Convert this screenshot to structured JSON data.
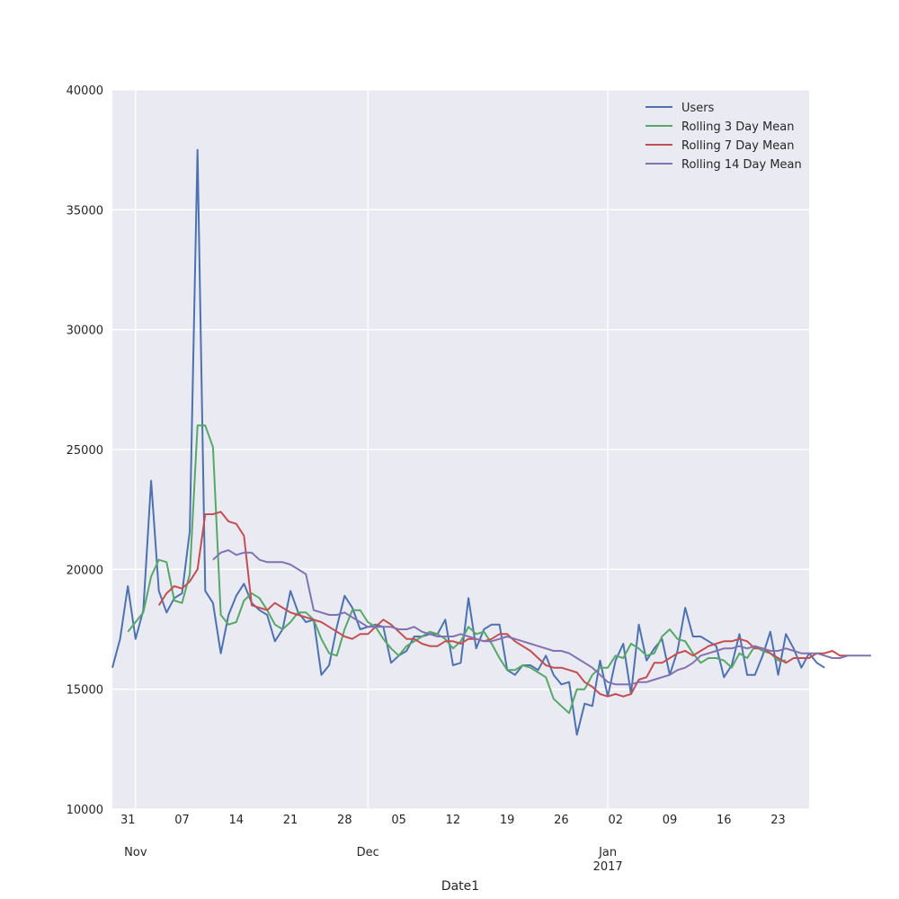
{
  "chart_data": {
    "type": "line",
    "xlabel": "Date1",
    "ylabel": "",
    "x_range": [
      "2016-10-29",
      "2017-01-27"
    ],
    "ylim": [
      10000,
      40000
    ],
    "y_ticks": [
      10000,
      15000,
      20000,
      25000,
      30000,
      35000,
      40000
    ],
    "y_tick_labels": [
      "10000",
      "15000",
      "20000",
      "25000",
      "30000",
      "35000",
      "40000"
    ],
    "x_ticks": [
      {
        "date": "2016-10-31",
        "label": "31"
      },
      {
        "date": "2016-11-07",
        "label": "07"
      },
      {
        "date": "2016-11-14",
        "label": "14"
      },
      {
        "date": "2016-11-21",
        "label": "21"
      },
      {
        "date": "2016-11-28",
        "label": "28"
      },
      {
        "date": "2016-12-05",
        "label": "05"
      },
      {
        "date": "2016-12-12",
        "label": "12"
      },
      {
        "date": "2016-12-19",
        "label": "19"
      },
      {
        "date": "2016-12-26",
        "label": "26"
      },
      {
        "date": "2017-01-02",
        "label": "02"
      },
      {
        "date": "2017-01-09",
        "label": "09"
      },
      {
        "date": "2017-01-16",
        "label": "16"
      },
      {
        "date": "2017-01-23",
        "label": "23"
      }
    ],
    "x_major_ticks": [
      {
        "date": "2016-11-01",
        "label": "Nov"
      },
      {
        "date": "2016-12-01",
        "label": "Dec"
      },
      {
        "date": "2017-01-01",
        "label": "Jan",
        "sublabel": "2017"
      }
    ],
    "grid": true,
    "legend_position": "top-right",
    "background": "#eaeaf2",
    "series": [
      {
        "name": "Users",
        "color": "#4c72b0",
        "start_date": "2016-10-29",
        "values": [
          15900,
          17100,
          19300,
          17100,
          18300,
          23700,
          19100,
          18200,
          18800,
          19000,
          21600,
          37500,
          19100,
          18600,
          16500,
          18100,
          18900,
          19400,
          18600,
          18300,
          18100,
          17000,
          17500,
          19100,
          18200,
          17800,
          17900,
          15600,
          16000,
          17600,
          18900,
          18400,
          17500,
          17600,
          17700,
          17600,
          16100,
          16400,
          16600,
          17200,
          17200,
          17300,
          17300,
          17900,
          16000,
          16100,
          18800,
          16700,
          17500,
          17700,
          17700,
          15800,
          15600,
          16000,
          16000,
          15800,
          16400,
          15600,
          15200,
          15300,
          13100,
          14400,
          14300,
          16200,
          14700,
          16200,
          16900,
          14800,
          17700,
          16200,
          16700,
          17100,
          15600,
          16600,
          18400,
          17200,
          17200,
          17000,
          16800,
          15500,
          16000,
          17300,
          15600,
          15600,
          16400,
          17400,
          15600,
          17300,
          16700,
          15900,
          16500,
          16100,
          15900
        ]
      },
      {
        "name": "Rolling 3 Day Mean",
        "color": "#55a868",
        "start_date": "2016-10-31",
        "values": [
          17400,
          17800,
          18200,
          19700,
          20400,
          20300,
          18700,
          18600,
          19800,
          26000,
          26000,
          25100,
          18100,
          17700,
          17800,
          18700,
          19000,
          18800,
          18300,
          17700,
          17500,
          17800,
          18200,
          18200,
          17900,
          17100,
          16500,
          16400,
          17500,
          18300,
          18300,
          17800,
          17600,
          17100,
          16700,
          16400,
          16800,
          17000,
          17200,
          17400,
          17300,
          17100,
          16700,
          17000,
          17600,
          17300,
          17400,
          16900,
          16300,
          15800,
          15800,
          16000,
          15900,
          15700,
          15500,
          14600,
          14300,
          14000,
          15000,
          15000,
          15600,
          15900,
          15900,
          16400,
          16300,
          16900,
          16700,
          16400,
          16500,
          17200,
          17500,
          17100,
          17000,
          16500,
          16100,
          16300,
          16300,
          16200,
          15900,
          16500,
          16300,
          16800,
          16600,
          16500,
          16200,
          16200
        ]
      },
      {
        "name": "Rolling 7 Day Mean",
        "color": "#c44e52",
        "start_date": "2016-11-04",
        "values": [
          18500,
          19000,
          19300,
          19200,
          19500,
          20000,
          22300,
          22300,
          22400,
          22000,
          21900,
          21400,
          18500,
          18400,
          18300,
          18600,
          18400,
          18200,
          18100,
          18000,
          17900,
          17800,
          17600,
          17400,
          17200,
          17100,
          17300,
          17300,
          17600,
          17900,
          17700,
          17400,
          17100,
          17100,
          16900,
          16800,
          16800,
          17000,
          17000,
          16900,
          17100,
          17100,
          17000,
          17100,
          17300,
          17300,
          17000,
          16800,
          16600,
          16300,
          16000,
          15900,
          15900,
          15800,
          15700,
          15300,
          15100,
          14800,
          14700,
          14800,
          14700,
          14800,
          15400,
          15500,
          16100,
          16100,
          16300,
          16500,
          16600,
          16400,
          16600,
          16800,
          16900,
          17000,
          17000,
          17100,
          17000,
          16700,
          16700,
          16500,
          16300,
          16100,
          16300,
          16300,
          16300,
          16500,
          16500,
          16600,
          16400,
          16400
        ]
      },
      {
        "name": "Rolling 14 Day Mean",
        "color": "#8172b2",
        "start_date": "2016-11-11",
        "values": [
          20400,
          20700,
          20800,
          20600,
          20700,
          20700,
          20400,
          20300,
          20300,
          20300,
          20200,
          20000,
          19800,
          18300,
          18200,
          18100,
          18100,
          18200,
          18000,
          17800,
          17600,
          17600,
          17600,
          17600,
          17500,
          17500,
          17600,
          17400,
          17300,
          17200,
          17200,
          17200,
          17300,
          17200,
          17100,
          17000,
          17000,
          17100,
          17200,
          17100,
          17000,
          16900,
          16800,
          16700,
          16600,
          16600,
          16500,
          16300,
          16100,
          15900,
          15600,
          15300,
          15200,
          15200,
          15200,
          15300,
          15300,
          15400,
          15500,
          15600,
          15800,
          15900,
          16100,
          16400,
          16500,
          16600,
          16700,
          16700,
          16800,
          16700,
          16800,
          16700,
          16600,
          16600,
          16700,
          16600,
          16500,
          16500,
          16500,
          16400,
          16300,
          16300,
          16400,
          16400,
          16400,
          16400
        ]
      }
    ]
  }
}
